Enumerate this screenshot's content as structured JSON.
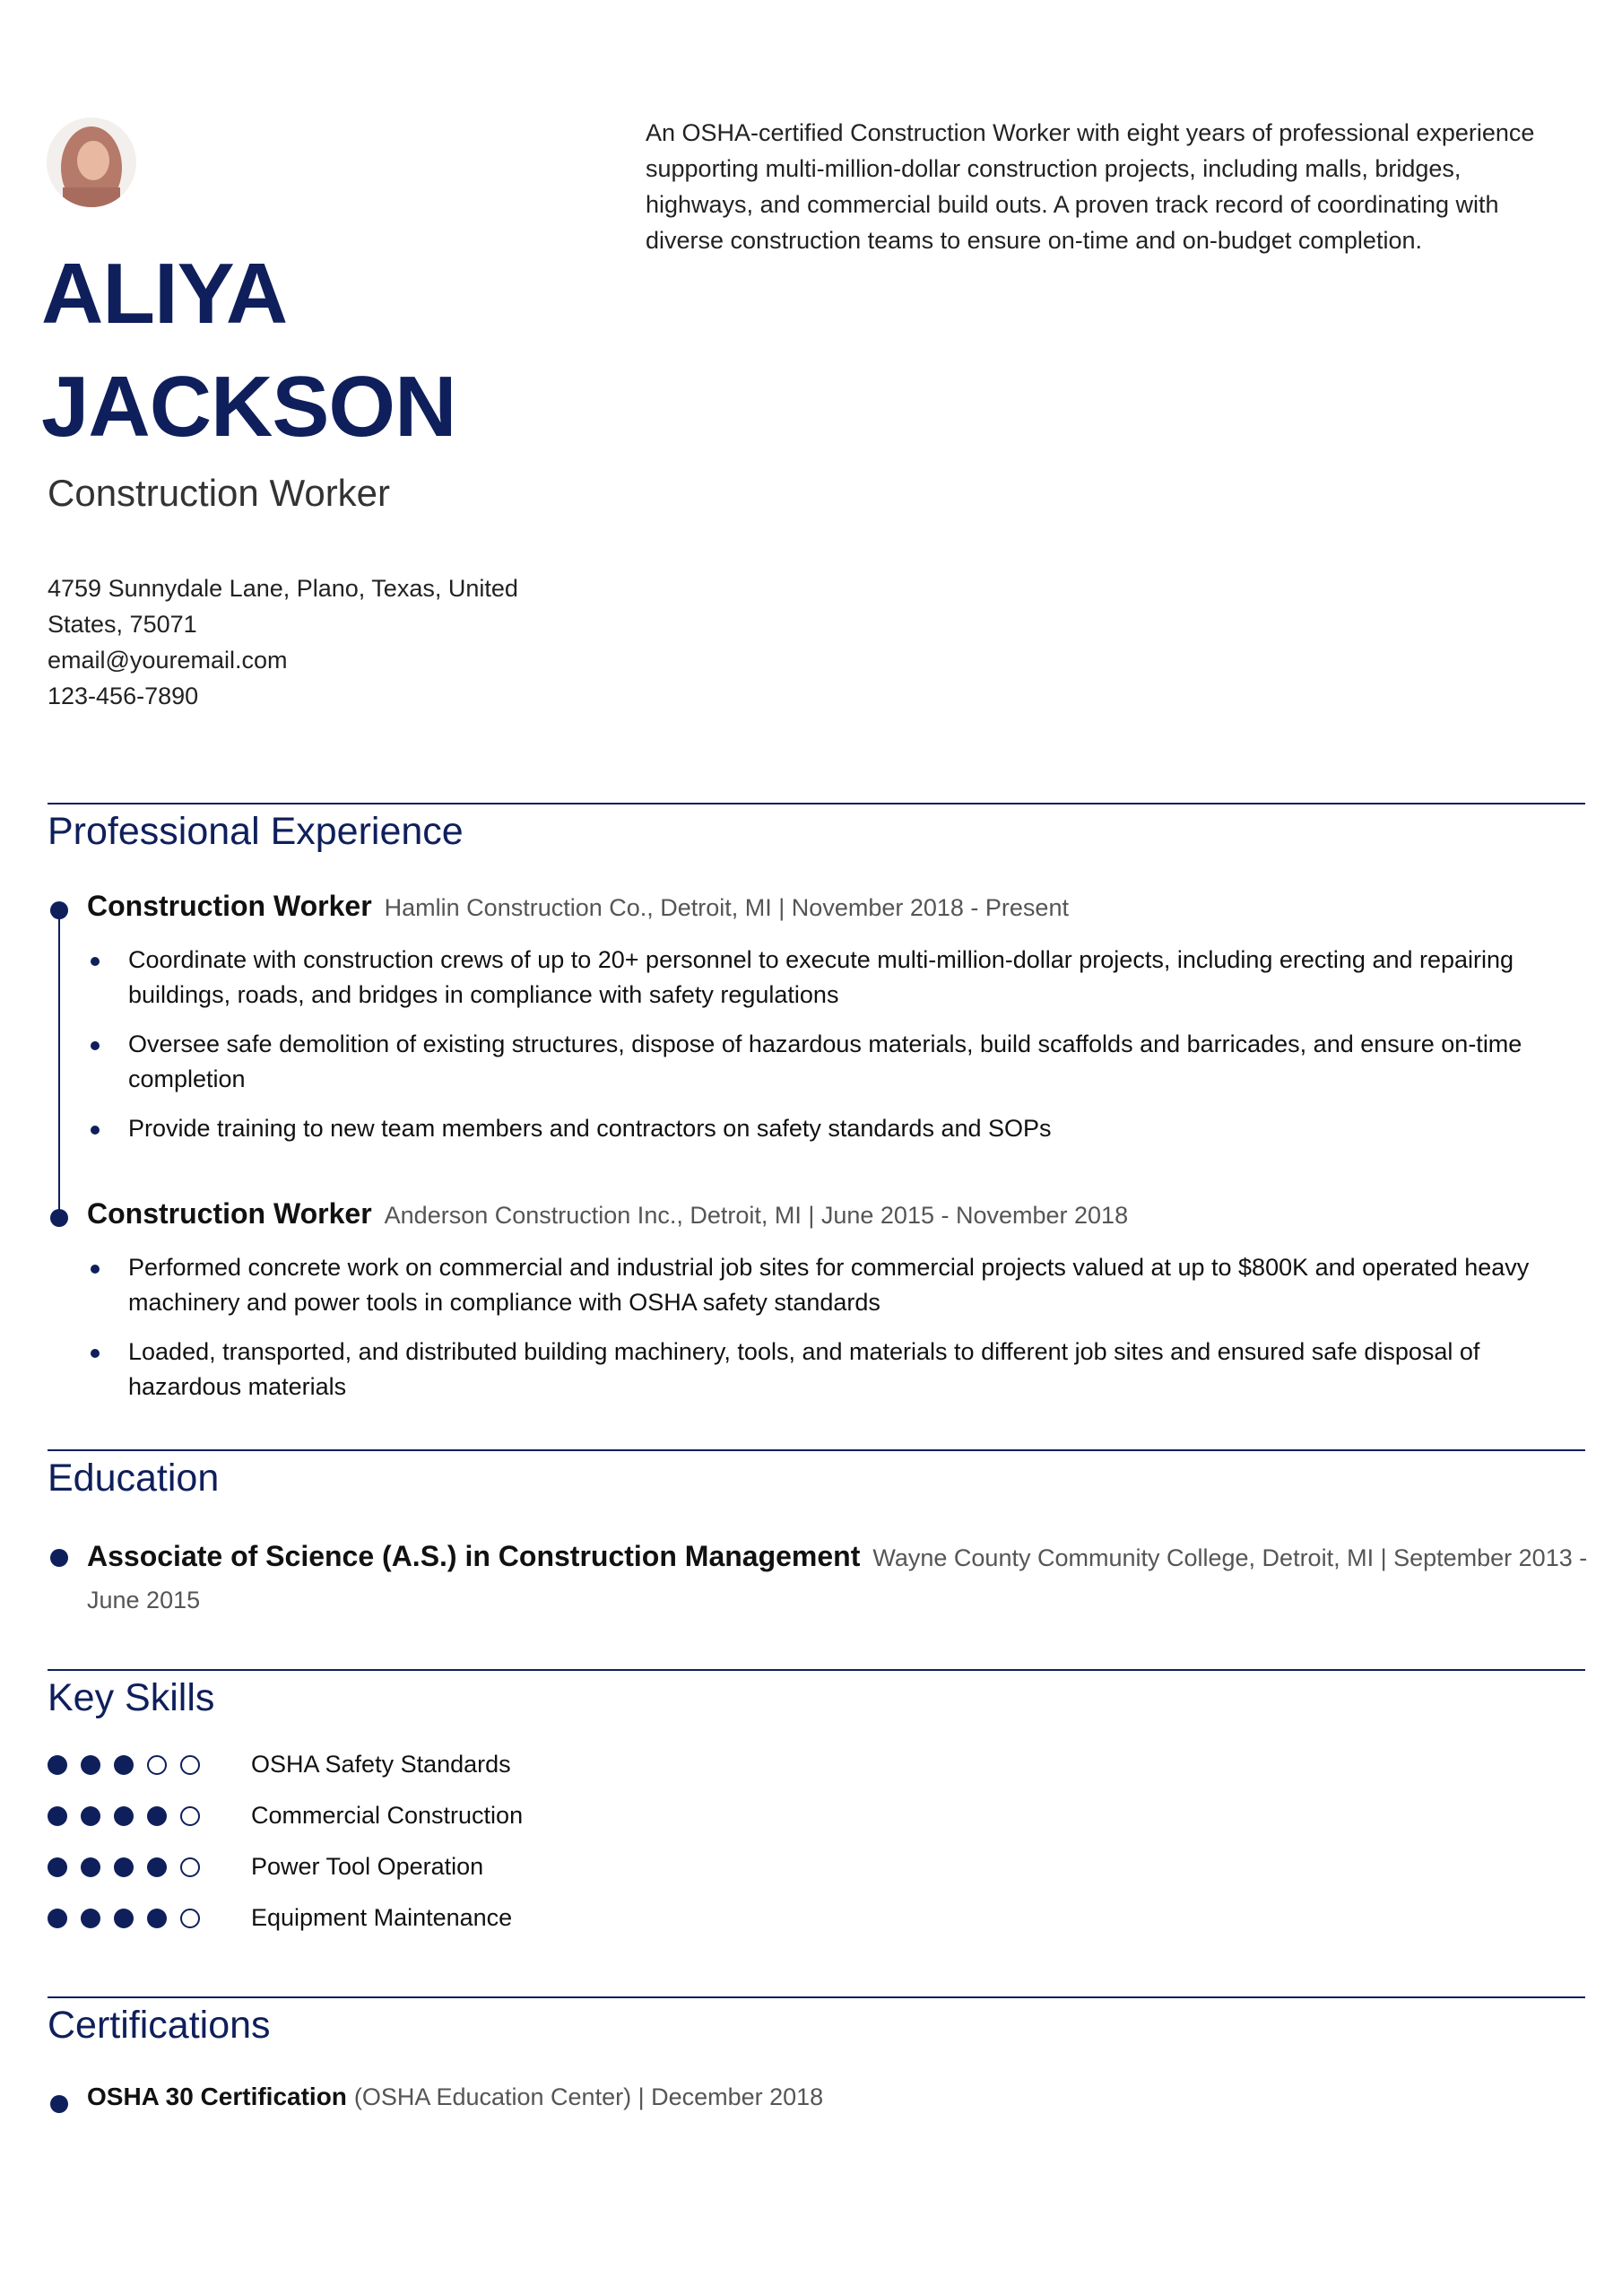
{
  "header": {
    "name": "ALIYA JACKSON",
    "title": "Construction Worker",
    "summary": "An OSHA-certified Construction Worker with eight years of professional  experience supporting multi-million-dollar construction projects,  including malls, bridges, highways, and commercial build outs. A proven  track record of coordinating with diverse construction teams to ensure  on-time and on-budget completion.",
    "address": "4759 Sunnydale Lane, Plano, Texas, United States, 75071",
    "email": "email@youremail.com",
    "phone": "123-456-7890"
  },
  "experience": {
    "heading": "Professional Experience",
    "jobs": [
      {
        "title": "Construction Worker",
        "details": "Hamlin Construction Co., Detroit, MI | November 2018 - Present",
        "bullets": [
          "Coordinate with construction crews of up to 20+ personnel to execute  multi-million-dollar projects, including erecting and repairing buildings, roads, and bridges in compliance with safety regulations",
          "Oversee safe demolition of existing structures, dispose of hazardous  materials, build scaffolds and barricades, and ensure on-time completion",
          "Provide training to new team members and contractors on safety standards and SOPs"
        ]
      },
      {
        "title": "Construction Worker",
        "details": "Anderson Construction Inc., Detroit, MI | June 2015 - November 2018",
        "bullets": [
          "Performed concrete work on commercial and industrial job sites for  commercial projects valued at up to $800K and operated heavy machinery  and power tools in compliance with OSHA safety standards",
          "Loaded, transported, and distributed building machinery, tools, and  materials to different job sites and ensured safe disposal of hazardous  materials"
        ]
      }
    ]
  },
  "education": {
    "heading": "Education",
    "items": [
      {
        "degree": "Associate of Science (A.S.) in Construction Management",
        "details": "Wayne County Community College, Detroit, MI | September 2013 - June 2015"
      }
    ]
  },
  "skills": {
    "heading": "Key Skills",
    "max": 5,
    "items": [
      {
        "name": "OSHA Safety Standards",
        "level": 3
      },
      {
        "name": "Commercial Construction",
        "level": 4
      },
      {
        "name": "Power Tool Operation",
        "level": 4
      },
      {
        "name": "Equipment Maintenance",
        "level": 4
      }
    ]
  },
  "certifications": {
    "heading": "Certifications",
    "items": [
      {
        "name": "OSHA 30 Certification",
        "details": "(OSHA Education Center) | December 2018"
      }
    ]
  }
}
